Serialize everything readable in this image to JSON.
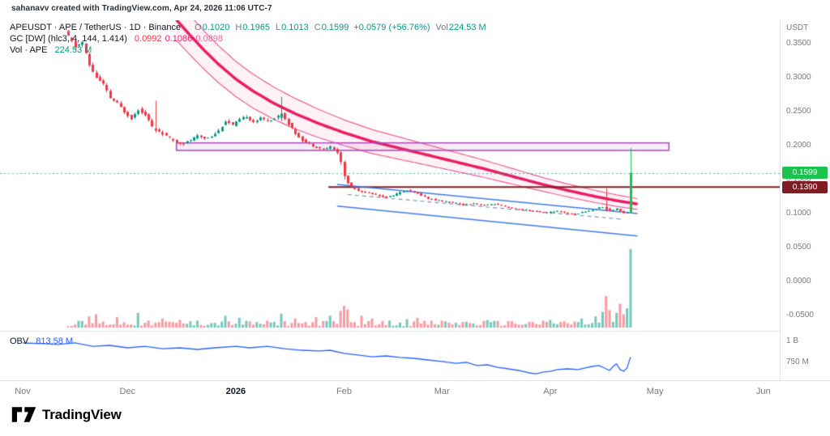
{
  "attribution": "sahanavv created with TradingView.com, Apr 24, 2026 11:06 UTC-7",
  "footer": {
    "brand": "TradingView"
  },
  "legend": {
    "row1": {
      "symbol": "APEUSDT · APE / TetherUS · 1D · Binance",
      "o_label": "O",
      "o": "0.1020",
      "h_label": "H",
      "h": "0.1965",
      "l_label": "L",
      "l": "0.1013",
      "c_label": "C",
      "c": "0.1599",
      "change": "+0.0579 (+56.76%)",
      "vol_label": "Vol",
      "vol": "224.53 M"
    },
    "row2": {
      "name": "GC [DW] (hlc3, 4, 144, 1.414)",
      "v1": "0.0992",
      "v2": "0.1086",
      "v3": "0.0898"
    },
    "row3": {
      "name": "Vol · APE",
      "value": "224.53 M"
    },
    "obv": {
      "name": "OBV",
      "value": "813.58 M"
    }
  },
  "axis": {
    "currency": "USDT",
    "price_ticks": [
      {
        "label": "0.3500",
        "value": 0.35
      },
      {
        "label": "0.3000",
        "value": 0.3
      },
      {
        "label": "0.2500",
        "value": 0.25
      },
      {
        "label": "0.2000",
        "value": 0.2
      },
      {
        "label": "0.1500",
        "value": 0.15
      },
      {
        "label": "0.1000",
        "value": 0.1
      },
      {
        "label": "0.0500",
        "value": 0.05
      },
      {
        "label": "0.0000",
        "value": 0.0
      },
      {
        "label": "-0.0500",
        "value": -0.05
      }
    ],
    "time_ticks": [
      {
        "label": "Nov",
        "day": 0
      },
      {
        "label": "Dec",
        "day": 30
      },
      {
        "label": "2026",
        "day": 61,
        "bold": true
      },
      {
        "label": "Feb",
        "day": 92
      },
      {
        "label": "Mar",
        "day": 120
      },
      {
        "label": "Apr",
        "day": 151
      },
      {
        "label": "May",
        "day": 181
      },
      {
        "label": "Jun",
        "day": 212
      }
    ],
    "obv_ticks": [
      {
        "label": "1 B",
        "value": 1000
      },
      {
        "label": "750 M",
        "value": 750
      }
    ]
  },
  "badges": {
    "last": {
      "label": "0.1599",
      "value": 0.1599
    },
    "level": {
      "label": "0.1390",
      "value": 0.139
    }
  },
  "colors": {
    "up": "#089981",
    "down": "#F23645",
    "big_candle": "#1CC24E",
    "vol_up": "rgba(8,153,129,0.55)",
    "vol_down": "rgba(242,54,69,0.5)",
    "gc_center": "#E91E63",
    "gc_edge": "#EC5F94",
    "gc_fill": "rgba(233,30,99,0.06)",
    "box_border": "#AB47BC",
    "box_fill": "rgba(171,71,188,0.11)",
    "level_line": "#7E1D24",
    "level_badge_bg": "#7E1D24",
    "last_badge_bg": "#1CC24E",
    "trend_blue": "#3D7BEA",
    "trend_dashed": "#7A95C8",
    "obv_line": "#2962FF",
    "pink1": "#F23645",
    "pink2": "#E91E63",
    "pink3": "#F06292"
  },
  "chart_data": {
    "type": "candlestick",
    "title": "APEUSDT · APE / TetherUS · 1D · Binance",
    "seed": 11,
    "units": {
      "price": "USDT",
      "volume": "millions APE",
      "obv": "millions",
      "x": "day index from Nov 1"
    },
    "last_candle": {
      "open": 0.102,
      "high": 0.1965,
      "low": 0.1013,
      "close": 0.1599,
      "change": 0.0579,
      "change_pct": 56.76,
      "volume_m": 224.53
    },
    "x_axis": {
      "first_candle_day": 13,
      "last_candle_day": 174
    },
    "y_axis": {
      "min": -0.05,
      "max": 0.385,
      "ticks": [
        0.35,
        0.3,
        0.25,
        0.2,
        0.15,
        0.1,
        0.05,
        0,
        -0.05
      ]
    },
    "close_path": [
      [
        12,
        0.368
      ],
      [
        13,
        0.36
      ],
      [
        15,
        0.345
      ],
      [
        17,
        0.352
      ],
      [
        19,
        0.318
      ],
      [
        21,
        0.3
      ],
      [
        23,
        0.29
      ],
      [
        25,
        0.27
      ],
      [
        27,
        0.262
      ],
      [
        29,
        0.25
      ],
      [
        31,
        0.24
      ],
      [
        33,
        0.253
      ],
      [
        35,
        0.246
      ],
      [
        37,
        0.228
      ],
      [
        39,
        0.221
      ],
      [
        41,
        0.214
      ],
      [
        44,
        0.205
      ],
      [
        46,
        0.203
      ],
      [
        48,
        0.208
      ],
      [
        50,
        0.214
      ],
      [
        52,
        0.211
      ],
      [
        54,
        0.214
      ],
      [
        56,
        0.222
      ],
      [
        58,
        0.236
      ],
      [
        60,
        0.23
      ],
      [
        62,
        0.238
      ],
      [
        64,
        0.243
      ],
      [
        66,
        0.235
      ],
      [
        68,
        0.24
      ],
      [
        70,
        0.237
      ],
      [
        72,
        0.24
      ],
      [
        74,
        0.247
      ],
      [
        76,
        0.232
      ],
      [
        78,
        0.218
      ],
      [
        80,
        0.208
      ],
      [
        82,
        0.202
      ],
      [
        84,
        0.198
      ],
      [
        86,
        0.195
      ],
      [
        88,
        0.198
      ],
      [
        90,
        0.19
      ],
      [
        91,
        0.176
      ],
      [
        92,
        0.155
      ],
      [
        93,
        0.145
      ],
      [
        94,
        0.14
      ],
      [
        96,
        0.134
      ],
      [
        98,
        0.131
      ],
      [
        100,
        0.129
      ],
      [
        102,
        0.126
      ],
      [
        104,
        0.124
      ],
      [
        106,
        0.127
      ],
      [
        108,
        0.131
      ],
      [
        110,
        0.134
      ],
      [
        112,
        0.131
      ],
      [
        114,
        0.127
      ],
      [
        116,
        0.122
      ],
      [
        118,
        0.12
      ],
      [
        120,
        0.118
      ],
      [
        123,
        0.116
      ],
      [
        126,
        0.113
      ],
      [
        129,
        0.115
      ],
      [
        132,
        0.112
      ],
      [
        135,
        0.114
      ],
      [
        138,
        0.11
      ],
      [
        141,
        0.107
      ],
      [
        144,
        0.105
      ],
      [
        147,
        0.103
      ],
      [
        150,
        0.101
      ],
      [
        153,
        0.104
      ],
      [
        156,
        0.1
      ],
      [
        158,
        0.099
      ],
      [
        160,
        0.102
      ],
      [
        162,
        0.104
      ],
      [
        164,
        0.107
      ],
      [
        166,
        0.11
      ],
      [
        168,
        0.104
      ],
      [
        170,
        0.107
      ],
      [
        172,
        0.101
      ],
      [
        173,
        0.102
      ],
      [
        174,
        0.1599
      ]
    ],
    "special_candles": {
      "38": {
        "o": 0.225,
        "h": 0.266,
        "l": 0.219,
        "c": 0.222
      },
      "74": {
        "o": 0.241,
        "h": 0.272,
        "l": 0.236,
        "c": 0.247
      },
      "91": {
        "o": 0.19,
        "h": 0.192,
        "l": 0.172,
        "c": 0.176
      },
      "92": {
        "o": 0.176,
        "h": 0.178,
        "l": 0.15,
        "c": 0.155
      },
      "167": {
        "o": 0.11,
        "h": 0.137,
        "l": 0.103,
        "c": 0.104
      },
      "174": {
        "o": 0.102,
        "h": 0.1965,
        "l": 0.1013,
        "c": 0.1599
      }
    },
    "volume_anchors": {
      "19": 32,
      "21": 38,
      "27": 30,
      "33": 42,
      "40": 26,
      "45": 22,
      "50": 20,
      "58": 34,
      "62": 28,
      "74": 40,
      "78": 26,
      "84": 30,
      "88": 34,
      "91": 48,
      "92": 62,
      "93": 52,
      "97": 34,
      "100": 26,
      "105": 20,
      "110": 24,
      "113": 28,
      "120": 20,
      "126": 16,
      "133": 22,
      "140": 18,
      "146": 16,
      "151": 22,
      "155": 18,
      "160": 26,
      "164": 32,
      "166": 45,
      "167": 90,
      "168": 50,
      "170": 42,
      "171": 68,
      "172": 38,
      "173": 55,
      "174": 224.53
    },
    "gc_channel": {
      "name": "GC [DW]",
      "params": "hlc3, 4, 144, 1.414",
      "current_values": [
        0.0992,
        0.1086,
        0.0898
      ],
      "center": [
        [
          44,
          0.385
        ],
        [
          48,
          0.362
        ],
        [
          52,
          0.34
        ],
        [
          56,
          0.32
        ],
        [
          61,
          0.298
        ],
        [
          66,
          0.28
        ],
        [
          72,
          0.262
        ],
        [
          78,
          0.247
        ],
        [
          85,
          0.232
        ],
        [
          92,
          0.219
        ],
        [
          100,
          0.206
        ],
        [
          108,
          0.196
        ],
        [
          116,
          0.186
        ],
        [
          124,
          0.176
        ],
        [
          132,
          0.166
        ],
        [
          140,
          0.155
        ],
        [
          148,
          0.144
        ],
        [
          156,
          0.134
        ],
        [
          164,
          0.125
        ],
        [
          170,
          0.119
        ],
        [
          176,
          0.114
        ]
      ],
      "half_width": [
        [
          44,
          0.03
        ],
        [
          61,
          0.026
        ],
        [
          80,
          0.022
        ],
        [
          92,
          0.019
        ],
        [
          110,
          0.016
        ],
        [
          130,
          0.013
        ],
        [
          150,
          0.01
        ],
        [
          176,
          0.008
        ]
      ]
    },
    "resistance_box": {
      "from_day": 44,
      "to_day": 185,
      "price_top": 0.204,
      "price_bottom": 0.193
    },
    "level_line": {
      "price": 0.139,
      "from_day": 87.5
    },
    "trendlines": [
      {
        "from": [
          90,
          0.143
        ],
        "to": [
          176,
          0.1
        ],
        "style": "solid"
      },
      {
        "from": [
          90,
          0.111
        ],
        "to": [
          176,
          0.067
        ],
        "style": "solid"
      },
      {
        "from": [
          93,
          0.128
        ],
        "to": [
          172,
          0.0915
        ],
        "style": "dashed"
      }
    ],
    "obv": {
      "current_m": 813.58,
      "path": [
        [
          0,
          981
        ],
        [
          6,
          972
        ],
        [
          10,
          962
        ],
        [
          15,
          981
        ],
        [
          20,
          942
        ],
        [
          25,
          952
        ],
        [
          30,
          923
        ],
        [
          35,
          942
        ],
        [
          40,
          913
        ],
        [
          45,
          923
        ],
        [
          50,
          904
        ],
        [
          55,
          923
        ],
        [
          61,
          942
        ],
        [
          65,
          923
        ],
        [
          70,
          942
        ],
        [
          75,
          913
        ],
        [
          80,
          894
        ],
        [
          85,
          885
        ],
        [
          88,
          894
        ],
        [
          92,
          856
        ],
        [
          96,
          837
        ],
        [
          100,
          817
        ],
        [
          104,
          827
        ],
        [
          108,
          808
        ],
        [
          112,
          798
        ],
        [
          116,
          779
        ],
        [
          120,
          760
        ],
        [
          124,
          740
        ],
        [
          127,
          750
        ],
        [
          130,
          712
        ],
        [
          133,
          721
        ],
        [
          136,
          692
        ],
        [
          139,
          673
        ],
        [
          142,
          654
        ],
        [
          145,
          625
        ],
        [
          147,
          615
        ],
        [
          149,
          635
        ],
        [
          151,
          644
        ],
        [
          153,
          664
        ],
        [
          156,
          673
        ],
        [
          159,
          664
        ],
        [
          161,
          683
        ],
        [
          163,
          702
        ],
        [
          165,
          712
        ],
        [
          167,
          673
        ],
        [
          168,
          654
        ],
        [
          169,
          702
        ],
        [
          170,
          731
        ],
        [
          171,
          664
        ],
        [
          172,
          644
        ],
        [
          173,
          683
        ],
        [
          174,
          813.58
        ]
      ]
    }
  }
}
